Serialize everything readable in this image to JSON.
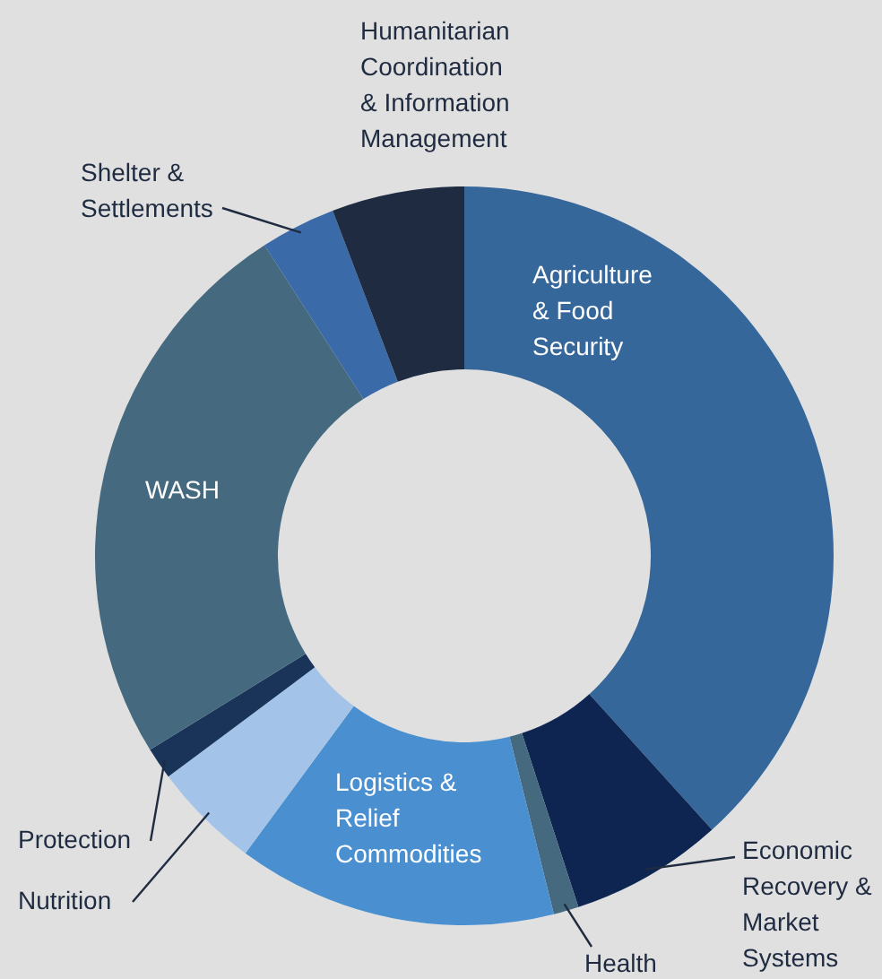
{
  "chart_data": {
    "type": "donut",
    "categories": [
      "Agriculture\n& Food\nSecurity",
      "Economic\nRecovery &\nMarket\nSystems",
      "Health",
      "Logistics &\nRelief\nCommodities",
      "Nutrition",
      "Protection",
      "WASH",
      "Shelter &\nSettlements",
      "Humanitarian\nCoordination\n& Information\nManagement"
    ],
    "values": [
      38.3,
      6.7,
      1.1,
      14.0,
      4.7,
      1.4,
      24.7,
      3.3,
      5.8
    ],
    "colors": [
      "#36679b",
      "#0d2550",
      "#456a80",
      "#4a90d0",
      "#a3c4e8",
      "#1a3358",
      "#456a80",
      "#3a6aa8",
      "#1f2b40"
    ]
  }
}
